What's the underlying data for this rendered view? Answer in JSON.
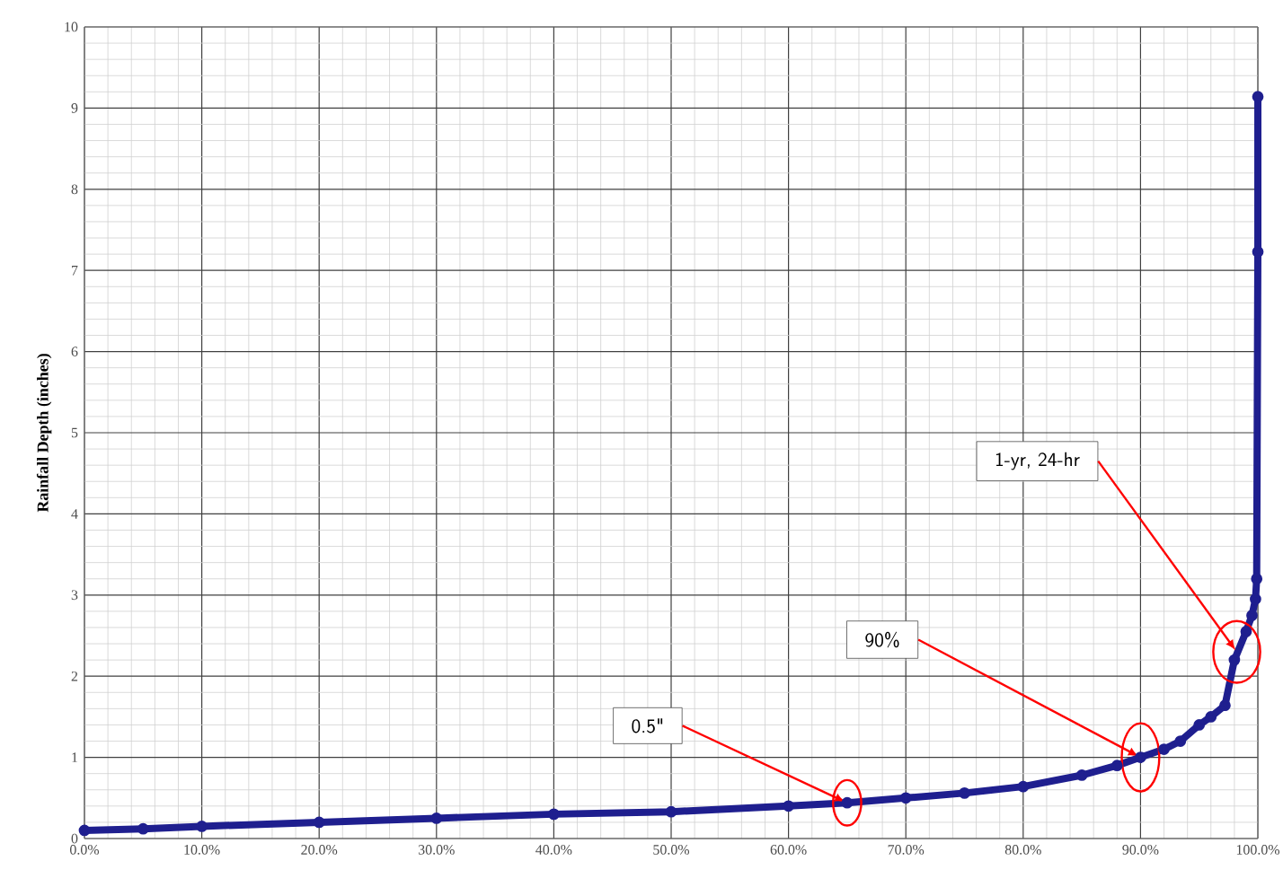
{
  "chart_data": {
    "type": "line",
    "ylabel": "Rainfall Depth (inches)",
    "x": [
      0,
      5,
      10,
      20,
      30,
      40,
      50,
      60,
      65,
      70,
      75,
      80,
      85,
      88,
      90,
      92,
      93.4,
      95,
      96,
      97.2,
      98,
      99,
      99.5,
      99.8,
      99.9,
      100,
      100
    ],
    "series": [
      {
        "color": "#1f1f8f",
        "values": [
          0.1,
          0.12,
          0.15,
          0.2,
          0.25,
          0.3,
          0.33,
          0.4,
          0.44,
          0.5,
          0.56,
          0.64,
          0.78,
          0.9,
          1.0,
          1.1,
          1.2,
          1.4,
          1.5,
          1.64,
          2.2,
          2.55,
          2.75,
          2.95,
          3.2,
          7.23,
          9.14
        ]
      }
    ],
    "xlim": [
      0,
      100
    ],
    "ylim": [
      0,
      10
    ],
    "xticks": [
      {
        "value": 0,
        "label": "0.0%"
      },
      {
        "value": 10,
        "label": "10.0%"
      },
      {
        "value": 20,
        "label": "20.0%"
      },
      {
        "value": 30,
        "label": "30.0%"
      },
      {
        "value": 40,
        "label": "40.0%"
      },
      {
        "value": 50,
        "label": "50.0%"
      },
      {
        "value": 60,
        "label": "60.0%"
      },
      {
        "value": 70,
        "label": "70.0%"
      },
      {
        "value": 80,
        "label": "80.0%"
      },
      {
        "value": 90,
        "label": "90.0%"
      },
      {
        "value": 100,
        "label": "100.0%"
      }
    ],
    "yticks": [
      0,
      1,
      2,
      3,
      4,
      5,
      6,
      7,
      8,
      9,
      10
    ],
    "grid": true,
    "marker": "circle",
    "line_style": "solid",
    "annotations": [
      {
        "text": "0.5\"",
        "x": 65,
        "y": 0.44
      },
      {
        "text": "90%",
        "x": 90,
        "y": 1.0
      },
      {
        "text": "1-yr, 24-hr",
        "x": 98.2,
        "y": 2.3
      }
    ]
  }
}
